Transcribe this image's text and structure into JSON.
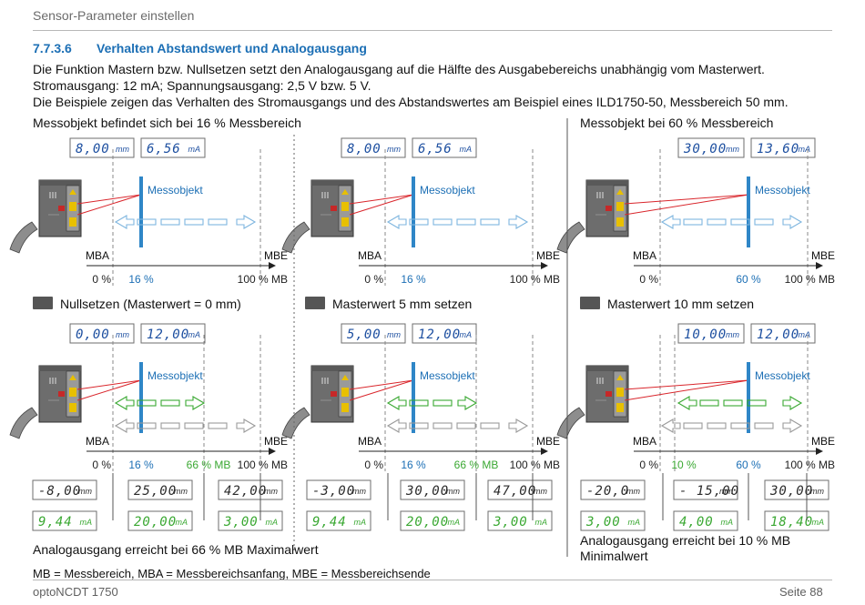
{
  "header": {
    "title": "Sensor-Parameter einstellen"
  },
  "section": {
    "number": "7.7.3.6",
    "title": "Verhalten Abstandswert und Analogausgang"
  },
  "intro": [
    "Die Funktion Mastern bzw. Nullsetzen setzt den Analogausgang auf die Hälfte des Ausgabebereichs unabhängig vom Masterwert.",
    "Stromausgang: 12 mA; Spannungsausgang: 2,5 V bzw. 5 V.",
    "Die Beispiele zeigen das Verhalten des Stromausgangs und des Abstandswertes am Beispiel eines ILD1750-50, Messbereich 50 mm."
  ],
  "labels": {
    "messobjekt": "Messobjekt",
    "mba": "MBA",
    "mbe": "MBE",
    "zero": "0 %",
    "hundred": "100 % MB",
    "sixteen": "16 %",
    "sixty": "60 %",
    "sixtysix": "66 % MB",
    "ten": "10 %",
    "sensor_brand": "optoNCDT"
  },
  "columns": {
    "left_title": "Messobjekt befindet sich bei 16 % Messbereich",
    "right_title": "Messobjekt bei 60 % Messbereich",
    "step_a": "Nullsetzen (Masterwert = 0 mm)",
    "step_b": "Masterwert 5 mm setzen",
    "step_c": "Masterwert 10 mm setzen",
    "note_a": "Analogausgang erreicht bei 66 % MB Maximalwert",
    "note_c_1": "Analogausgang erreicht bei 10 % MB",
    "note_c_2": "Minimalwert"
  },
  "displays": {
    "a_top_mm": "8,00",
    "a_top_ma": "6,56",
    "b_top_mm": "8,00",
    "b_top_ma": "6,56",
    "c_top_mm": "30,00",
    "c_top_ma": "13,60",
    "a_mid_mm": "0,00",
    "a_mid_ma": "12,00",
    "b_mid_mm": "5,00",
    "b_mid_ma": "12,00",
    "c_mid_mm": "10,00",
    "c_mid_ma": "12,00",
    "a_bot": [
      [
        "-8,00",
        "9,44"
      ],
      [
        "25,00",
        "20,00"
      ],
      [
        "42,00",
        "3,00"
      ]
    ],
    "b_bot": [
      [
        "-3,00",
        "9,44"
      ],
      [
        "30,00",
        "20,00"
      ],
      [
        "47,00",
        "3,00"
      ]
    ],
    "c_bot": [
      [
        "-20,0",
        "3,00"
      ],
      [
        "- 15,00",
        "4,00"
      ],
      [
        "30,00",
        "18,40"
      ]
    ],
    "unit_mm": "mm",
    "unit_ma": "mA"
  },
  "footer": {
    "legend": "MB = Messbereich, MBA = Messbereichsanfang, MBE = Messbereichsende",
    "product": "optoNCDT 1750",
    "page": "Seite 88"
  },
  "colors": {
    "blue": "#1c6fb5",
    "green": "#3aa832",
    "lcd_blue": "#1d4fa0",
    "red": "#d9262c",
    "bar": "#2f86c7"
  }
}
